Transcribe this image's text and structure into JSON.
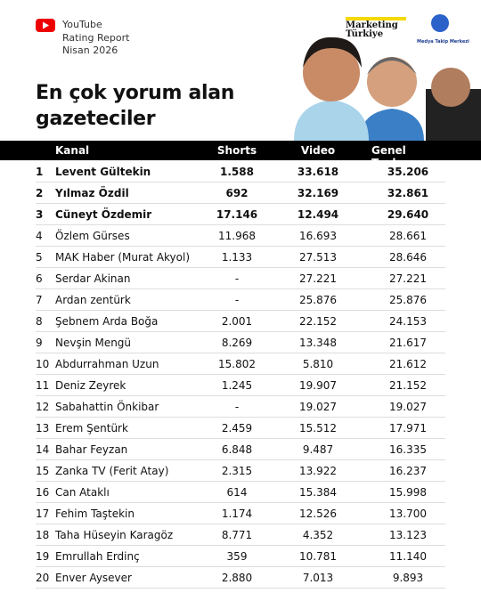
{
  "header": {
    "brand_lines": [
      "YouTube",
      "Rating Report",
      "Nisan 2026"
    ],
    "title_lines": [
      "En çok yorum alan",
      "gazeteciler"
    ],
    "logos": [
      "Marketing",
      "Türkiye",
      "Medya Takip Merkezi"
    ]
  },
  "table": {
    "columns": [
      "Kanal",
      "Shorts",
      "Video",
      "Genel Toplam"
    ],
    "bold_rows": 3,
    "rows": [
      [
        "1",
        "Levent Gültekin",
        "1.588",
        "33.618",
        "35.206"
      ],
      [
        "2",
        "Yılmaz Özdil",
        "692",
        "32.169",
        "32.861"
      ],
      [
        "3",
        "Cüneyt Özdemir",
        "17.146",
        "12.494",
        "29.640"
      ],
      [
        "4",
        "Özlem Gürses",
        "11.968",
        "16.693",
        "28.661"
      ],
      [
        "5",
        "MAK Haber (Murat Akyol)",
        "1.133",
        "27.513",
        "28.646"
      ],
      [
        "6",
        "Serdar Akinan",
        "-",
        "27.221",
        "27.221"
      ],
      [
        "7",
        "Ardan zentürk",
        "-",
        "25.876",
        "25.876"
      ],
      [
        "8",
        "Şebnem Arda Boğa",
        "2.001",
        "22.152",
        "24.153"
      ],
      [
        "9",
        "Nevşin Mengü",
        "8.269",
        "13.348",
        "21.617"
      ],
      [
        "10",
        "Abdurrahman Uzun",
        "15.802",
        "5.810",
        "21.612"
      ],
      [
        "11",
        "Deniz Zeyrek",
        "1.245",
        "19.907",
        "21.152"
      ],
      [
        "12",
        "Sabahattin Önkibar",
        "-",
        "19.027",
        "19.027"
      ],
      [
        "13",
        "Erem Şentürk",
        "2.459",
        "15.512",
        "17.971"
      ],
      [
        "14",
        "Bahar Feyzan",
        "6.848",
        "9.487",
        "16.335"
      ],
      [
        "15",
        "Zanka TV (Ferit Atay)",
        "2.315",
        "13.922",
        "16.237"
      ],
      [
        "16",
        "Can Ataklı",
        "614",
        "15.384",
        "15.998"
      ],
      [
        "17",
        "Fehim Taştekin",
        "1.174",
        "12.526",
        "13.700"
      ],
      [
        "18",
        "Taha Hüseyin Karagöz",
        "8.771",
        "4.352",
        "13.123"
      ],
      [
        "19",
        "Emrullah Erdinç",
        "359",
        "10.781",
        "11.140"
      ],
      [
        "20",
        "Enver Aysever",
        "2.880",
        "7.013",
        "9.893"
      ]
    ]
  }
}
